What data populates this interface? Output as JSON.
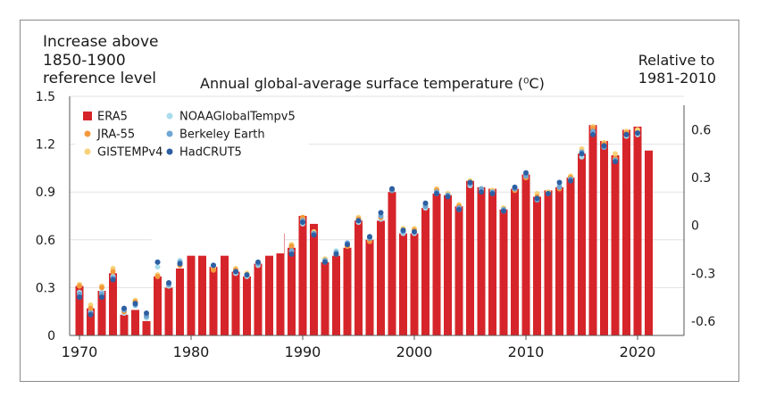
{
  "header": {
    "left_title": [
      "Increase above",
      "1850-1900",
      "reference level"
    ],
    "right_title": [
      "Relative to",
      "1981-2010"
    ],
    "chart_title": "Annual global-average surface temperature (⁰C)"
  },
  "colors": {
    "ERA5": "#d6252a",
    "JRA-55": "#f39a3c",
    "GISTEMPv4": "#f7d27a",
    "NOAAGlobalTempv5": "#aadcec",
    "Berkeley Earth": "#6fa6d4",
    "HadCRUT5": "#2d5fa3"
  },
  "chart_data": {
    "type": "bar",
    "title": "Annual global-average surface temperature (⁰C)",
    "ylabel_left": "Increase above 1850-1900 reference level",
    "ylabel_right": "Relative to 1981-2010",
    "ylim": [
      0,
      1.5
    ],
    "yticks_left": [
      "1.5",
      "1.2",
      "0.9",
      "0.6",
      "0.3",
      "0"
    ],
    "yticks_left_values": [
      1.5,
      1.2,
      0.9,
      0.6,
      0.3,
      0
    ],
    "yticks_right": [
      "0.6",
      "0.3",
      "0",
      "-0.3",
      "-0.6"
    ],
    "yticks_right_values": [
      0.6,
      0.3,
      0,
      -0.3,
      -0.6
    ],
    "right_offset": 0.69,
    "xticks": [
      "1970",
      "1980",
      "1990",
      "2000",
      "2010",
      "2020"
    ],
    "xtick_values": [
      1970,
      1980,
      1990,
      2000,
      2010,
      2020
    ],
    "grid": true,
    "legend_position": "top-left",
    "legend_layout": [
      [
        "ERA5",
        "NOAAGlobalTempv5"
      ],
      [
        "JRA-55",
        "Berkeley Earth"
      ],
      [
        "GISTEMPv4",
        "HadCRUT5"
      ]
    ],
    "years": [
      1970,
      1971,
      1972,
      1973,
      1974,
      1975,
      1976,
      1977,
      1978,
      1979,
      1980,
      1981,
      1982,
      1983,
      1984,
      1985,
      1986,
      1987,
      1988,
      1989,
      1990,
      1991,
      1992,
      1993,
      1994,
      1995,
      1996,
      1997,
      1998,
      1999,
      2000,
      2001,
      2002,
      2003,
      2004,
      2005,
      2006,
      2007,
      2008,
      2009,
      2010,
      2011,
      2012,
      2013,
      2014,
      2015,
      2016,
      2017,
      2018,
      2019,
      2020,
      2021
    ],
    "series": [
      {
        "name": "ERA5",
        "kind": "bar",
        "values": [
          0.31,
          0.17,
          0.28,
          0.39,
          0.13,
          0.16,
          0.09,
          0.37,
          0.3,
          0.42,
          0.5,
          0.5,
          0.43,
          0.5,
          0.4,
          0.37,
          0.45,
          0.5,
          0.64,
          0.55,
          0.75,
          0.7,
          0.46,
          0.5,
          0.55,
          0.72,
          0.6,
          0.72,
          0.9,
          0.64,
          0.64,
          0.8,
          0.89,
          0.88,
          0.81,
          0.97,
          0.93,
          0.92,
          0.79,
          0.92,
          1.01,
          0.87,
          0.91,
          0.93,
          0.99,
          1.14,
          1.32,
          1.22,
          1.13,
          1.29,
          1.31,
          1.16
        ]
      },
      {
        "name": "JRA-55",
        "kind": "dot",
        "values": [
          0.31,
          0.17,
          0.3,
          0.4,
          0.15,
          0.21,
          0.12,
          0.37,
          0.32,
          0.44,
          null,
          null,
          0.41,
          null,
          0.41,
          0.38,
          0.45,
          null,
          0.62,
          0.56,
          0.74,
          0.64,
          0.47,
          0.51,
          0.56,
          0.73,
          0.59,
          0.74,
          0.91,
          0.66,
          0.66,
          0.81,
          0.91,
          0.88,
          0.81,
          0.96,
          0.91,
          0.89,
          0.79,
          0.91,
          0.99,
          0.87,
          0.89,
          0.92,
          0.99,
          1.15,
          1.3,
          1.2,
          1.11,
          1.27,
          1.27,
          null
        ]
      },
      {
        "name": "GISTEMPv4",
        "kind": "dot",
        "values": [
          0.32,
          0.19,
          0.31,
          0.42,
          0.15,
          0.22,
          0.13,
          0.38,
          0.33,
          0.45,
          null,
          null,
          0.42,
          null,
          0.42,
          0.39,
          0.46,
          null,
          0.64,
          0.57,
          0.73,
          0.65,
          0.48,
          0.52,
          0.57,
          0.74,
          0.6,
          0.75,
          0.92,
          0.67,
          0.67,
          0.82,
          0.92,
          0.89,
          0.82,
          0.97,
          0.92,
          0.91,
          0.8,
          0.92,
          1.0,
          0.89,
          0.9,
          0.93,
          1.0,
          1.17,
          1.31,
          1.21,
          1.14,
          1.28,
          1.29,
          null
        ]
      },
      {
        "name": "NOAAGlobalTempv5",
        "kind": "dot",
        "values": [
          0.27,
          0.15,
          0.27,
          0.37,
          0.14,
          0.19,
          0.11,
          0.43,
          0.31,
          0.47,
          null,
          null,
          0.43,
          null,
          0.39,
          0.37,
          0.44,
          null,
          0.61,
          0.53,
          0.7,
          0.64,
          0.46,
          0.53,
          0.58,
          0.71,
          0.6,
          0.73,
          0.91,
          0.64,
          0.64,
          0.8,
          0.89,
          0.89,
          0.79,
          0.94,
          0.91,
          0.9,
          0.78,
          0.93,
          0.99,
          0.86,
          0.9,
          0.94,
          0.99,
          1.12,
          1.27,
          1.19,
          1.1,
          1.25,
          1.26,
          null
        ]
      },
      {
        "name": "Berkeley Earth",
        "kind": "dot",
        "values": [
          0.26,
          0.14,
          0.26,
          0.36,
          0.16,
          0.19,
          0.12,
          0.46,
          0.32,
          0.46,
          null,
          null,
          0.44,
          null,
          0.4,
          0.38,
          0.45,
          null,
          0.61,
          0.53,
          0.72,
          0.64,
          0.47,
          0.52,
          0.58,
          0.72,
          0.61,
          0.75,
          0.91,
          0.65,
          0.65,
          0.81,
          0.9,
          0.88,
          0.8,
          0.95,
          0.92,
          0.9,
          0.79,
          0.92,
          1.0,
          0.85,
          0.89,
          0.93,
          0.98,
          1.15,
          1.28,
          1.18,
          1.1,
          1.26,
          1.27,
          null
        ]
      },
      {
        "name": "HadCRUT5",
        "kind": "dot",
        "values": [
          0.24,
          0.13,
          0.24,
          0.35,
          0.17,
          0.2,
          0.14,
          0.46,
          0.33,
          0.45,
          null,
          null,
          0.44,
          null,
          0.4,
          0.38,
          0.46,
          null,
          0.62,
          0.51,
          0.71,
          0.63,
          0.46,
          0.51,
          0.57,
          0.72,
          0.62,
          0.77,
          0.92,
          0.66,
          0.65,
          0.83,
          0.89,
          0.87,
          0.79,
          0.96,
          0.9,
          0.89,
          0.78,
          0.93,
          1.02,
          0.86,
          0.89,
          0.96,
          0.97,
          1.14,
          1.26,
          1.19,
          1.09,
          1.26,
          1.27,
          null
        ]
      }
    ]
  }
}
